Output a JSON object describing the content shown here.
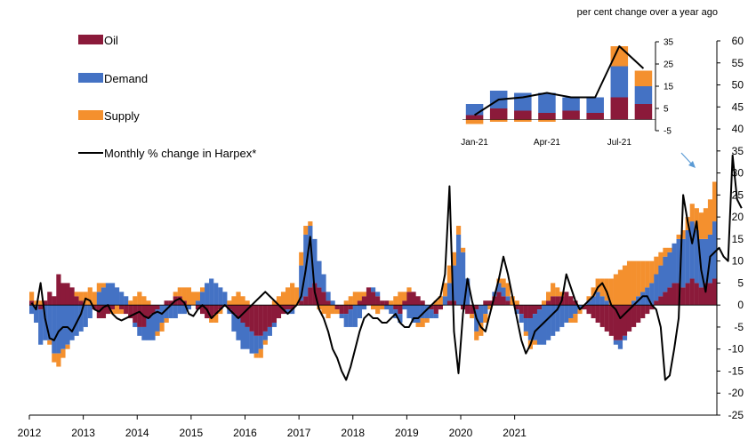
{
  "colors": {
    "oil": "#8B1A3A",
    "demand": "#4472C4",
    "supply": "#F4902E",
    "line": "#000000",
    "arrow": "#5B9BD5"
  },
  "unit_note": "per cent change over a year ago",
  "chart_data": [
    {
      "type": "bar",
      "stacked": true,
      "xlabel": "",
      "ylabel": "",
      "ylim": [
        -25,
        60
      ],
      "yticks": [
        60,
        55,
        50,
        45,
        40,
        35,
        30,
        25,
        20,
        15,
        10,
        5,
        0,
        -5,
        -10,
        -15,
        -20,
        -25
      ],
      "x_start": "2012-01",
      "x_end": "2021-06",
      "x_tick_labels": [
        "2012",
        "2013",
        "2014",
        "2015",
        "2016",
        "2017",
        "2018",
        "2019",
        "2020",
        "2021"
      ],
      "legend": [
        {
          "key": "oil",
          "label": "Oil",
          "kind": "box"
        },
        {
          "key": "demand",
          "label": "Demand",
          "kind": "box"
        },
        {
          "key": "supply",
          "label": "Supply",
          "kind": "box"
        },
        {
          "key": "line",
          "label": "Monthly % change in Harpex*",
          "kind": "line"
        }
      ],
      "legend_position": "top-left",
      "series": [
        {
          "key": "oil",
          "values": [
            1,
            0,
            -1,
            1,
            3,
            2,
            7,
            5,
            5,
            4,
            2,
            1,
            0,
            0,
            -1,
            -3,
            -3,
            -2,
            -1,
            0,
            -1,
            -2,
            -3,
            -4,
            -5,
            -5,
            -3,
            -2,
            -1,
            0,
            1,
            1,
            2,
            2,
            1,
            0,
            0,
            -1,
            -2,
            -3,
            -3,
            -2,
            -1,
            0,
            -1,
            -2,
            -3,
            -4,
            -5,
            -6,
            -7,
            -7,
            -6,
            -5,
            -4,
            -3,
            -2,
            -1,
            -1,
            0,
            1,
            2,
            4,
            5,
            4,
            3,
            1,
            0,
            -1,
            -2,
            -2,
            -1,
            0,
            1,
            2,
            4,
            3,
            2,
            1,
            1,
            0,
            -1,
            -2,
            1,
            3,
            3,
            2,
            1,
            0,
            -1,
            -2,
            -1,
            0,
            1,
            1,
            0,
            -1,
            -2,
            -2,
            -1,
            0,
            1,
            1,
            2,
            3,
            2,
            1,
            0,
            -1,
            -2,
            -3,
            -3,
            -2,
            -1,
            0,
            1,
            2,
            2,
            2,
            3,
            2,
            1,
            0,
            -1,
            -2,
            -3,
            -4,
            -5,
            -6,
            -7,
            -8,
            -8,
            -7,
            -6,
            -5,
            -4,
            -3,
            -2,
            -1,
            1,
            2,
            3,
            4,
            5,
            5,
            4,
            5,
            6,
            5,
            4,
            5,
            5,
            6
          ]
        },
        {
          "key": "demand",
          "values": [
            -2,
            -4,
            -8,
            -8,
            -8,
            -11,
            -11,
            -10,
            -9,
            -8,
            -7,
            -6,
            -5,
            -3,
            0,
            3,
            4,
            5,
            5,
            4,
            3,
            2,
            0,
            -1,
            -2,
            -3,
            -5,
            -6,
            -5,
            -4,
            -3,
            -3,
            -3,
            -2,
            -2,
            -1,
            0,
            1,
            3,
            5,
            6,
            5,
            4,
            3,
            -1,
            -4,
            -5,
            -6,
            -5,
            -5,
            -4,
            -3,
            -2,
            -2,
            -1,
            0,
            0,
            -1,
            -1,
            0,
            8,
            14,
            14,
            10,
            6,
            4,
            2,
            1,
            0,
            -1,
            -3,
            -4,
            -5,
            -3,
            -1,
            0,
            1,
            1,
            0,
            -1,
            -2,
            -2,
            -2,
            -1,
            -3,
            -4,
            -4,
            -3,
            -3,
            -2,
            -1,
            0,
            2,
            4,
            8,
            16,
            12,
            6,
            0,
            -5,
            -4,
            -2,
            0,
            1,
            2,
            2,
            1,
            0,
            -1,
            -2,
            -3,
            -5,
            -6,
            -8,
            -9,
            -8,
            -7,
            -6,
            -5,
            -4,
            -3,
            -2,
            -1,
            0,
            1,
            2,
            3,
            2,
            1,
            0,
            -1,
            -2,
            -1,
            0,
            1,
            2,
            3,
            4,
            5,
            6,
            7,
            8,
            8,
            9,
            10,
            11,
            12,
            13,
            12,
            11,
            10,
            11,
            13,
            12,
            10,
            9,
            8,
            8
          ]
        },
        {
          "key": "supply",
          "values": [
            2,
            1,
            1,
            0,
            -1,
            -2,
            -3,
            -2,
            -1,
            0,
            1,
            2,
            3,
            4,
            3,
            2,
            1,
            0,
            -1,
            -2,
            -1,
            0,
            1,
            2,
            3,
            2,
            1,
            0,
            -1,
            -2,
            -1,
            0,
            1,
            2,
            3,
            4,
            3,
            2,
            1,
            0,
            -1,
            -2,
            -1,
            0,
            1,
            2,
            3,
            2,
            1,
            0,
            -1,
            -2,
            -1,
            0,
            1,
            2,
            3,
            4,
            5,
            4,
            3,
            2,
            1,
            0,
            -1,
            -2,
            -3,
            -2,
            -1,
            0,
            1,
            2,
            3,
            2,
            1,
            0,
            -1,
            -2,
            -1,
            0,
            1,
            2,
            3,
            2,
            1,
            0,
            -1,
            -2,
            -1,
            0,
            1,
            2,
            3,
            4,
            3,
            2,
            1,
            0,
            -1,
            -2,
            -3,
            -2,
            -1,
            0,
            1,
            2,
            3,
            2,
            1,
            0,
            -1,
            -2,
            -1,
            0,
            1,
            2,
            3,
            2,
            1,
            0,
            -1,
            -2,
            -1,
            0,
            1,
            2,
            3,
            4,
            5,
            6,
            7,
            8,
            9,
            10,
            9,
            8,
            7,
            6,
            5,
            4,
            3,
            2,
            1,
            0,
            1,
            2,
            3,
            4,
            5,
            6,
            7,
            8,
            9,
            10,
            11,
            12,
            10
          ]
        }
      ],
      "line_values": [
        0.5,
        -1,
        5,
        -3,
        -7.5,
        -8,
        -6,
        -5,
        -5,
        -6,
        -4,
        -2,
        1.5,
        1,
        -1,
        -1.5,
        -0.5,
        0,
        -2,
        -3,
        -3.5,
        -3,
        -2.5,
        -2,
        -1.5,
        -2.5,
        -3,
        -2,
        -1.5,
        -2,
        -1,
        0,
        1,
        1.5,
        0.5,
        -2,
        -2.5,
        -1,
        0,
        -1,
        -3,
        -2,
        -1,
        0,
        -1,
        -2,
        -3,
        -2,
        -1,
        0,
        1,
        2,
        3,
        2,
        1,
        0,
        -1,
        -2,
        -1,
        0,
        2,
        8,
        15.5,
        3,
        -1,
        -3,
        -6,
        -10,
        -12,
        -15,
        -17,
        -14,
        -10,
        -6,
        -3,
        -2,
        -3,
        -3,
        -4,
        -4,
        -3,
        -2,
        -4,
        -5,
        -5,
        -3,
        -3,
        -2,
        -1,
        0,
        1,
        2,
        7,
        27,
        -6,
        -15.5,
        -2,
        6,
        1,
        -3,
        -5,
        -6,
        -2,
        2,
        6,
        11,
        7,
        2,
        -3,
        -8,
        -11,
        -9,
        -6,
        -5,
        -4,
        -3,
        -2,
        -1,
        1,
        7,
        4,
        1,
        -1,
        0,
        1,
        2,
        4,
        5,
        3,
        0,
        -1,
        -3,
        -2,
        -1,
        0,
        1,
        2,
        2,
        0,
        -1,
        -5,
        -17,
        -16,
        -10,
        -3,
        25,
        19,
        14,
        19,
        8,
        3,
        11,
        12,
        13,
        11,
        10,
        34,
        24,
        22
      ]
    },
    {
      "type": "bar",
      "stacked": true,
      "name": "inset",
      "ylim": [
        -5,
        35
      ],
      "yticks": [
        35,
        25,
        15,
        5,
        -5
      ],
      "x_tick_labels": [
        "Jan-21",
        "Apr-21",
        "Jul-21"
      ],
      "categories": [
        "Jan-21",
        "Feb-21",
        "Mar-21",
        "Apr-21",
        "May-21",
        "Jun-21",
        "Jul-21",
        "Aug-21"
      ],
      "series": [
        {
          "key": "oil",
          "values": [
            2,
            5,
            4,
            3,
            4,
            3,
            10,
            7
          ]
        },
        {
          "key": "demand",
          "values": [
            5,
            8,
            8,
            9,
            6,
            7,
            14,
            8
          ]
        },
        {
          "key": "supply",
          "values": [
            -2,
            -1,
            -1,
            -1,
            0,
            0,
            9,
            7
          ]
        }
      ],
      "line_values": [
        2,
        9,
        10,
        12,
        10,
        10,
        33,
        23
      ]
    }
  ]
}
